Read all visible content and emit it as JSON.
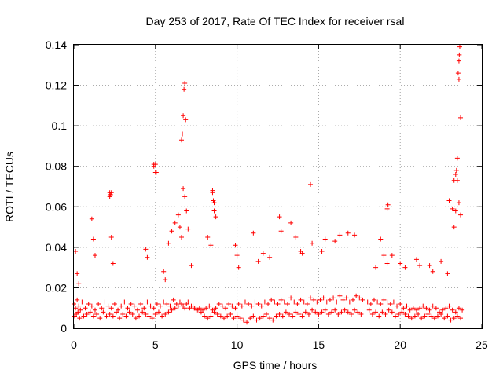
{
  "chart_data": {
    "type": "scatter",
    "title": "Day 253 of 2017, Rate Of TEC Index for receiver rsal",
    "xlabel": "GPS time / hours",
    "ylabel": "ROTI / TECUs",
    "xlim": [
      0,
      25
    ],
    "ylim": [
      0,
      0.14
    ],
    "xticks": [
      0,
      5,
      10,
      15,
      20,
      25
    ],
    "yticks": [
      0,
      0.02,
      0.04,
      0.06,
      0.08,
      0.1,
      0.12,
      0.14
    ],
    "ytick_labels": [
      "0",
      "0.02",
      "0.04",
      "0.06",
      "0.08",
      "0.1",
      "0.12",
      "0.14"
    ],
    "grid": true,
    "legend": "none",
    "marker": "+",
    "color": "#ff0000",
    "series": [
      {
        "x": [
          0.0,
          0.1,
          0.2,
          0.3,
          0.4,
          0.5,
          0.7,
          0.9,
          1.1,
          1.3,
          1.5,
          1.7,
          1.9,
          2.1,
          2.3,
          2.5,
          2.7,
          2.9,
          3.1,
          3.3,
          3.5,
          3.7,
          3.9,
          4.1,
          4.3,
          4.5,
          4.7,
          4.9,
          5.1,
          5.3,
          5.5,
          5.7,
          5.9,
          6.1,
          6.3,
          6.5,
          6.7,
          6.9,
          7.1,
          7.3,
          7.5,
          7.7,
          7.9,
          8.1,
          8.3,
          8.5,
          8.7,
          8.9,
          9.1,
          9.3,
          9.5,
          9.7,
          9.9,
          10.1,
          10.3,
          10.5,
          10.7,
          10.9,
          11.1,
          11.3,
          11.5,
          11.7,
          11.9,
          12.1,
          12.3,
          12.5,
          12.7,
          12.9,
          13.1,
          13.3,
          13.5,
          13.7,
          13.9,
          14.1,
          14.3,
          14.5,
          14.7,
          14.9,
          15.1,
          15.3,
          15.5,
          15.7,
          15.9,
          16.1,
          16.3,
          16.5,
          16.7,
          16.9,
          17.1,
          17.3,
          17.5,
          17.7,
          18.0,
          18.2,
          18.4,
          18.6,
          18.8,
          19.0,
          19.2,
          19.4,
          19.6,
          19.8,
          20.0,
          20.2,
          20.4,
          20.6,
          20.8,
          21.0,
          21.2,
          21.4,
          21.6,
          21.8,
          22.0,
          22.2,
          22.4,
          22.6,
          22.8,
          23.0,
          23.2,
          23.4,
          23.6,
          23.8,
          0.05,
          0.15,
          0.25,
          0.35,
          0.6,
          0.8,
          1.0,
          1.2,
          1.4,
          1.6,
          1.8,
          2.0,
          2.2,
          2.4,
          2.6,
          2.8,
          3.0,
          3.2,
          3.4,
          3.6,
          3.8,
          4.0,
          4.2,
          4.4,
          4.6,
          4.8,
          5.0,
          5.2,
          5.4,
          5.6,
          5.8,
          6.0,
          6.2,
          6.4,
          6.6,
          6.8,
          7.0,
          7.2,
          7.4,
          7.6,
          7.8,
          8.0,
          8.2,
          8.4,
          8.6,
          8.8,
          9.0,
          9.2,
          9.4,
          9.6,
          9.8,
          10.0,
          10.2,
          10.4,
          10.6,
          10.8,
          11.0,
          11.2,
          11.4,
          11.6,
          11.8,
          12.0,
          12.2,
          12.4,
          12.6,
          12.8,
          13.0,
          13.2,
          13.4,
          13.6,
          13.8,
          14.0,
          14.2,
          14.4,
          14.6,
          14.8,
          15.0,
          15.2,
          15.4,
          15.6,
          15.8,
          16.0,
          16.2,
          16.4,
          16.6,
          16.8,
          17.0,
          17.2,
          17.4,
          17.6,
          18.1,
          18.3,
          18.5,
          18.7,
          18.9,
          19.1,
          19.3,
          19.5,
          19.7,
          19.9,
          20.1,
          20.3,
          20.5,
          20.7,
          20.9,
          21.1,
          21.3,
          21.5,
          21.7,
          21.9,
          22.1,
          22.3,
          22.5,
          22.7,
          22.9,
          23.1,
          23.3,
          23.5,
          23.7,
          0.1,
          0.2,
          0.3,
          1.1,
          1.2,
          1.3,
          2.2,
          2.3,
          2.4,
          4.4,
          4.5,
          4.9,
          5.0,
          5.5,
          5.6,
          5.8,
          6.0,
          6.2,
          6.4,
          6.5,
          6.6,
          6.7,
          6.8,
          6.9,
          7.0,
          7.2,
          8.2,
          8.4,
          8.5,
          8.6,
          8.7,
          9.9,
          10.0,
          10.1,
          11.0,
          11.3,
          11.6,
          12.0,
          12.6,
          12.7,
          13.3,
          13.6,
          13.9,
          14.0,
          14.6,
          15.2,
          15.4,
          16.0,
          16.3,
          16.8,
          17.2,
          18.5,
          18.8,
          19.0,
          19.2,
          19.5,
          20.0,
          20.3,
          21.0,
          21.2,
          21.8,
          22.0,
          22.5,
          22.9,
          23.0,
          23.2,
          23.3,
          23.4,
          23.5,
          23.6,
          23.7,
          2.2,
          2.25,
          2.3,
          4.9,
          5.0,
          5.05,
          6.6,
          6.65,
          6.7,
          6.75,
          6.8,
          6.85,
          8.5,
          8.55,
          8.6,
          14.5,
          19.2,
          19.25,
          23.3,
          23.4,
          23.45,
          23.5,
          23.55,
          23.6,
          23.62,
          23.65,
          23.7,
          23.6
        ],
        "y": [
          0.012,
          0.01,
          0.014,
          0.011,
          0.009,
          0.013,
          0.01,
          0.012,
          0.011,
          0.009,
          0.012,
          0.01,
          0.013,
          0.011,
          0.01,
          0.012,
          0.009,
          0.011,
          0.013,
          0.01,
          0.012,
          0.011,
          0.009,
          0.012,
          0.01,
          0.013,
          0.011,
          0.01,
          0.012,
          0.011,
          0.013,
          0.012,
          0.011,
          0.014,
          0.012,
          0.013,
          0.011,
          0.012,
          0.01,
          0.011,
          0.009,
          0.01,
          0.009,
          0.01,
          0.011,
          0.009,
          0.01,
          0.012,
          0.011,
          0.01,
          0.012,
          0.011,
          0.01,
          0.012,
          0.011,
          0.013,
          0.012,
          0.011,
          0.013,
          0.012,
          0.011,
          0.013,
          0.012,
          0.014,
          0.013,
          0.012,
          0.014,
          0.013,
          0.012,
          0.015,
          0.013,
          0.012,
          0.014,
          0.013,
          0.012,
          0.015,
          0.014,
          0.013,
          0.014,
          0.015,
          0.013,
          0.014,
          0.015,
          0.013,
          0.016,
          0.014,
          0.015,
          0.013,
          0.014,
          0.016,
          0.015,
          0.014,
          0.013,
          0.012,
          0.014,
          0.013,
          0.012,
          0.014,
          0.013,
          0.012,
          0.013,
          0.011,
          0.012,
          0.01,
          0.011,
          0.009,
          0.01,
          0.009,
          0.01,
          0.011,
          0.01,
          0.009,
          0.011,
          0.01,
          0.008,
          0.009,
          0.01,
          0.011,
          0.009,
          0.008,
          0.01,
          0.009,
          0.006,
          0.007,
          0.008,
          0.005,
          0.006,
          0.007,
          0.008,
          0.006,
          0.007,
          0.005,
          0.008,
          0.006,
          0.007,
          0.006,
          0.008,
          0.005,
          0.007,
          0.006,
          0.008,
          0.007,
          0.005,
          0.006,
          0.008,
          0.007,
          0.006,
          0.005,
          0.007,
          0.008,
          0.006,
          0.007,
          0.008,
          0.009,
          0.01,
          0.011,
          0.012,
          0.01,
          0.013,
          0.011,
          0.01,
          0.009,
          0.008,
          0.006,
          0.005,
          0.006,
          0.008,
          0.007,
          0.006,
          0.005,
          0.006,
          0.007,
          0.005,
          0.006,
          0.005,
          0.004,
          0.003,
          0.005,
          0.006,
          0.004,
          0.005,
          0.006,
          0.007,
          0.005,
          0.004,
          0.006,
          0.007,
          0.006,
          0.008,
          0.007,
          0.006,
          0.008,
          0.007,
          0.006,
          0.008,
          0.007,
          0.009,
          0.008,
          0.007,
          0.008,
          0.009,
          0.007,
          0.008,
          0.009,
          0.007,
          0.008,
          0.009,
          0.008,
          0.007,
          0.009,
          0.008,
          0.007,
          0.009,
          0.007,
          0.008,
          0.006,
          0.008,
          0.007,
          0.009,
          0.008,
          0.006,
          0.007,
          0.008,
          0.007,
          0.006,
          0.005,
          0.006,
          0.007,
          0.005,
          0.006,
          0.007,
          0.006,
          0.005,
          0.006,
          0.007,
          0.005,
          0.006,
          0.004,
          0.005,
          0.006,
          0.005,
          0.038,
          0.027,
          0.022,
          0.054,
          0.044,
          0.036,
          0.067,
          0.045,
          0.032,
          0.039,
          0.035,
          0.081,
          0.077,
          0.028,
          0.024,
          0.042,
          0.048,
          0.052,
          0.056,
          0.05,
          0.045,
          0.069,
          0.065,
          0.058,
          0.049,
          0.031,
          0.045,
          0.041,
          0.068,
          0.062,
          0.055,
          0.041,
          0.036,
          0.03,
          0.047,
          0.033,
          0.037,
          0.035,
          0.055,
          0.048,
          0.052,
          0.045,
          0.038,
          0.037,
          0.042,
          0.038,
          0.044,
          0.043,
          0.046,
          0.047,
          0.046,
          0.03,
          0.044,
          0.036,
          0.032,
          0.036,
          0.032,
          0.03,
          0.034,
          0.031,
          0.031,
          0.028,
          0.033,
          0.027,
          0.063,
          0.059,
          0.05,
          0.058,
          0.073,
          0.062,
          0.056,
          0.065,
          0.066,
          0.067,
          0.08,
          0.081,
          0.077,
          0.093,
          0.096,
          0.105,
          0.118,
          0.121,
          0.103,
          0.067,
          0.063,
          0.058,
          0.071,
          0.059,
          0.061,
          0.073,
          0.076,
          0.078,
          0.084,
          0.126,
          0.132,
          0.135,
          0.139,
          0.104,
          0.123
        ]
      }
    ]
  }
}
